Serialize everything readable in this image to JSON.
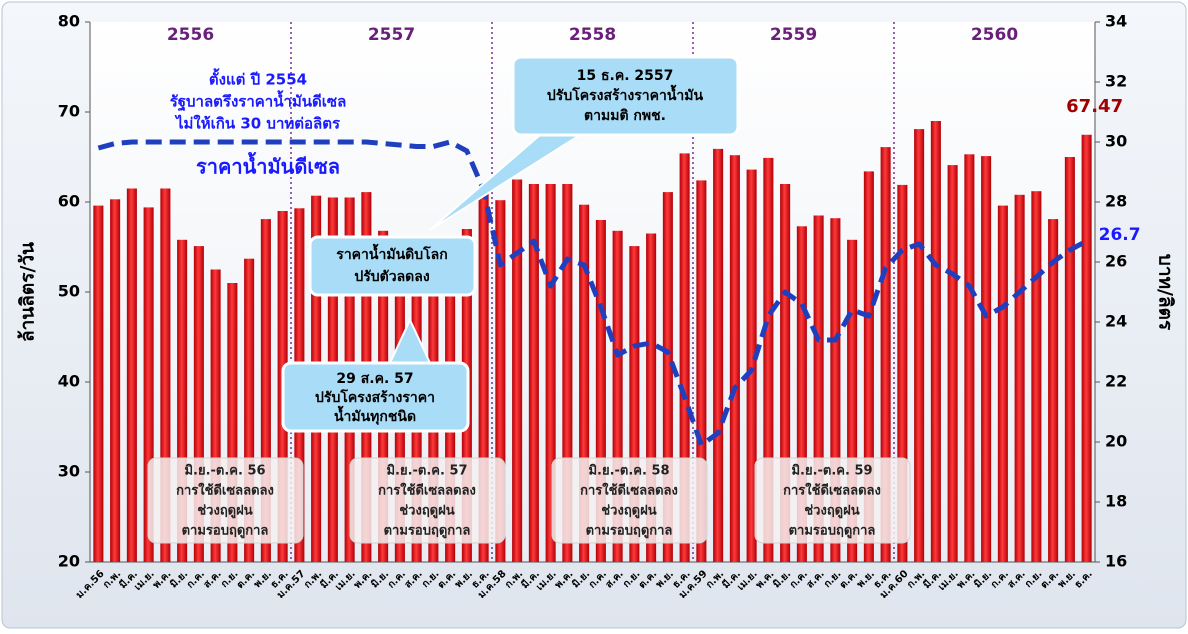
{
  "chart_data": {
    "type": "bar-line",
    "categories": [
      "ม.ค.56",
      "ก.พ.",
      "มี.ค.",
      "เม.ย.",
      "พ.ค.",
      "มิ.ย.",
      "ก.ค.",
      "ส.ค.",
      "ก.ย.",
      "ต.ค.",
      "พ.ย.",
      "ธ.ค.",
      "ม.ค.57",
      "ก.พ.",
      "มี.ค.",
      "เม.ย.",
      "พ.ค.",
      "มิ.ย.",
      "ก.ค.",
      "ส.ค.",
      "ก.ย.",
      "ต.ค.",
      "พ.ย.",
      "ธ.ค.",
      "ม.ค.58",
      "ก.พ.",
      "มี.ค.",
      "เม.ย.",
      "พ.ค.",
      "มิ.ย.",
      "ก.ค.",
      "ส.ค.",
      "ก.ย.",
      "ต.ค.",
      "พ.ย.",
      "ธ.ค.",
      "ม.ค.59",
      "ก.พ.",
      "มี.ค.",
      "เม.ย.",
      "พ.ค.",
      "มิ.ย.",
      "ก.ค.",
      "ส.ค.",
      "ก.ย.",
      "ต.ค.",
      "พ.ย.",
      "ธ.ค.",
      "ม.ค.60",
      "ก.พ.",
      "มี.ค.",
      "เม.ย.",
      "พ.ค.",
      "มิ.ย.",
      "ก.ค.",
      "ส.ค.",
      "ก.ย.",
      "ต.ค.",
      "พ.ย.",
      "ธ.ค."
    ],
    "year_labels": [
      "2556",
      "2557",
      "2558",
      "2559",
      "2560"
    ],
    "series": [
      {
        "type": "bar",
        "color": "#e8141a",
        "values": [
          59.6,
          60.3,
          61.5,
          59.4,
          61.5,
          55.8,
          55.1,
          52.5,
          51.0,
          53.7,
          58.1,
          59.0,
          59.3,
          60.7,
          60.5,
          60.5,
          61.1,
          56.8,
          55.0,
          54.0,
          53.0,
          56.0,
          57.0,
          61.2,
          60.2,
          62.5,
          62.0,
          62.0,
          62.0,
          59.7,
          58.0,
          56.8,
          55.1,
          56.5,
          61.1,
          65.4,
          62.4,
          65.9,
          65.2,
          63.6,
          64.9,
          62.0,
          57.3,
          58.5,
          58.2,
          55.8,
          63.4,
          66.1,
          61.9,
          68.1,
          69.0,
          64.1,
          65.3,
          65.1,
          59.6,
          60.8,
          61.2,
          58.1,
          65.0,
          67.47
        ]
      },
      {
        "type": "line",
        "name": "ราคาน้ำมันดีเซล",
        "axis": "y2",
        "color": "#1f3fbf",
        "values": [
          29.8,
          29.95,
          30,
          30,
          30,
          30,
          30,
          30,
          30,
          30,
          30,
          30,
          30,
          30,
          30,
          30,
          30,
          29.95,
          29.9,
          29.85,
          29.85,
          30,
          29.7,
          28.4,
          25.9,
          26.3,
          26.7,
          25.2,
          26.1,
          25.9,
          24.5,
          22.9,
          23.2,
          23.3,
          23.0,
          21.5,
          19.9,
          20.3,
          21.8,
          22.4,
          24.2,
          25.0,
          24.6,
          23.4,
          23.4,
          24.4,
          24.2,
          25.8,
          26.4,
          26.6,
          25.9,
          25.6,
          25.2,
          24.2,
          24.5,
          25.0,
          25.5,
          26.0,
          26.4,
          26.7
        ]
      }
    ],
    "ylabel": "ล้านลิตร/วัน",
    "y2label": "บาท/ลิตร",
    "ylim": [
      20,
      80
    ],
    "yticks": [
      20,
      30,
      40,
      50,
      60,
      70,
      80
    ],
    "y2lim": [
      16,
      34
    ],
    "y2ticks": [
      16,
      18,
      20,
      22,
      24,
      26,
      28,
      30,
      32,
      34
    ],
    "annotations": [
      {
        "lines": [
          "ตั้งแต่ ปี 2554",
          "รัฐบาลตรึงราคาน้ำมันดีเซล",
          "ไม่ให้เกิน 30 บาทต่อลิตร"
        ]
      },
      {
        "lines": [
          "15 ธ.ค. 2557",
          "ปรับโครงสร้างราคาน้ำมัน",
          "ตามมติ กพช."
        ]
      },
      {
        "lines": [
          "ราคาน้ำมันดิบโลก",
          "ปรับตัวลดลง"
        ]
      },
      {
        "lines": [
          "29 ส.ค. 57",
          "ปรับโครงสร้างราคา",
          "น้ำมันทุกชนิด"
        ]
      },
      {
        "lines": [
          "มิ.ย.-ต.ค. 56",
          "การใช้ดีเซลลดลง",
          "ช่วงฤดูฝน",
          "ตามรอบฤดูกาล"
        ]
      },
      {
        "lines": [
          "มิ.ย.-ต.ค. 57",
          "การใช้ดีเซลลดลง",
          "ช่วงฤดูฝน",
          "ตามรอบฤดูกาล"
        ]
      },
      {
        "lines": [
          "มิ.ย.-ต.ค. 58",
          "การใช้ดีเซลลดลง",
          "ช่วงฤดูฝน",
          "ตามรอบฤดูกาล"
        ]
      },
      {
        "lines": [
          "มิ.ย.-ต.ค. 59",
          "การใช้ดีเซลลดลง",
          "ช่วงฤดูฝน",
          "ตามรอบฤดูกาล"
        ]
      }
    ]
  }
}
